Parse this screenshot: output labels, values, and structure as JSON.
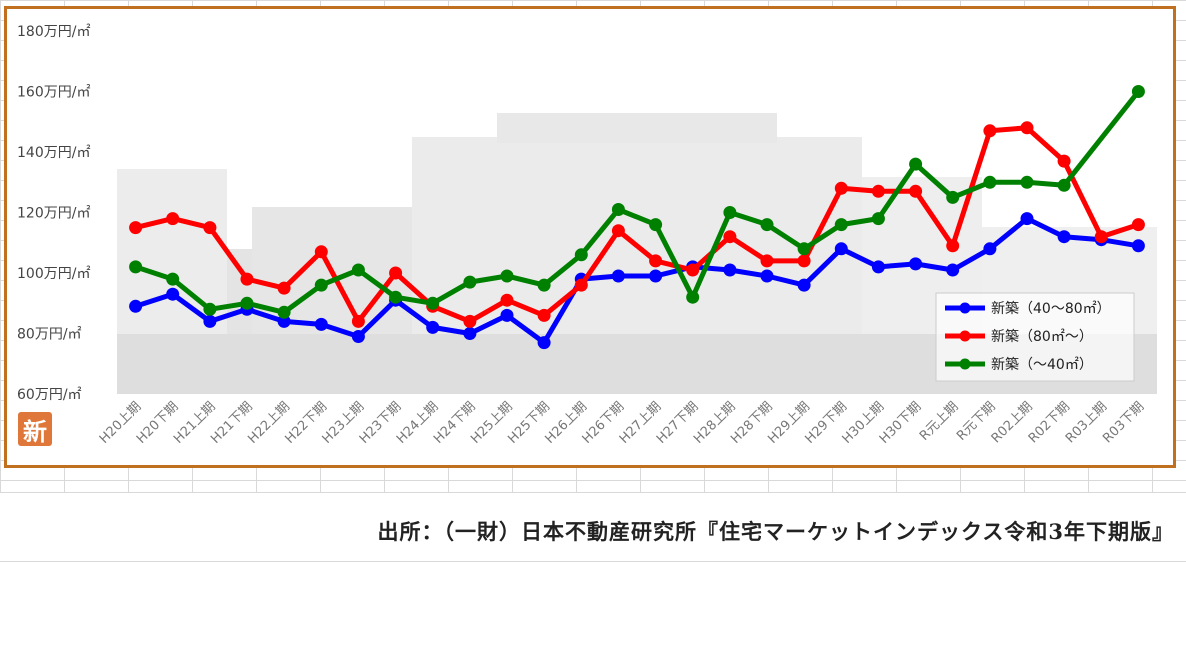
{
  "chart_data": {
    "type": "line",
    "categories": [
      "H20上期",
      "H20下期",
      "H21上期",
      "H21下期",
      "H22上期",
      "H22下期",
      "H23上期",
      "H23下期",
      "H24上期",
      "H24下期",
      "H25上期",
      "H25下期",
      "H26上期",
      "H26下期",
      "H27上期",
      "H27下期",
      "H28上期",
      "H28下期",
      "H29上期",
      "H29下期",
      "H30上期",
      "H30下期",
      "R元上期",
      "R元下期",
      "R02上期",
      "R02下期",
      "R03上期",
      "R03下期"
    ],
    "ylim": [
      60,
      180
    ],
    "yticks": [
      60,
      80,
      100,
      120,
      140,
      160,
      180
    ],
    "ytick_labels": [
      "60万円/㎡",
      "80万円/㎡",
      "100万円/㎡",
      "120万円/㎡",
      "140万円/㎡",
      "160万円/㎡",
      "180万円/㎡"
    ],
    "legend_position": "lower-right",
    "series": [
      {
        "name": "新築（40～80㎡）",
        "color": "#0000ff",
        "values": [
          89,
          93,
          84,
          88,
          84,
          83,
          79,
          91,
          82,
          80,
          86,
          77,
          98,
          99,
          99,
          102,
          101,
          99,
          96,
          108,
          102,
          103,
          101,
          108,
          118,
          112,
          111,
          109
        ]
      },
      {
        "name": "新築（80㎡～）",
        "color": "#ff0000",
        "values": [
          115,
          118,
          115,
          98,
          95,
          107,
          84,
          100,
          89,
          84,
          91,
          86,
          96,
          114,
          104,
          101,
          112,
          104,
          104,
          128,
          127,
          127,
          109,
          147,
          148,
          137,
          112,
          116
        ]
      },
      {
        "name": "新築（～40㎡）",
        "color": "#008000",
        "values": [
          102,
          98,
          88,
          90,
          87,
          96,
          101,
          92,
          90,
          97,
          99,
          96,
          106,
          121,
          116,
          92,
          120,
          116,
          108,
          116,
          118,
          136,
          125,
          130,
          130,
          129,
          null,
          160
        ]
      }
    ]
  },
  "badge": "新",
  "source": "出所：（一財）日本不動産研究所『住宅マーケットインデックス令和3年下期版』"
}
